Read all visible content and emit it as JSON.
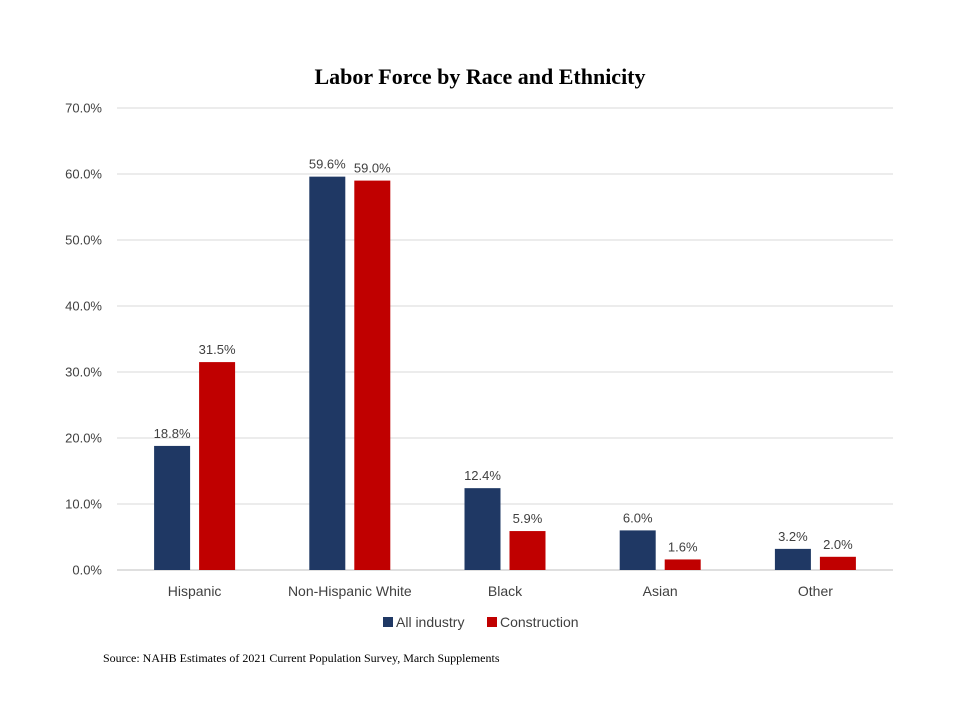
{
  "chart_data": {
    "type": "bar",
    "title": "Labor Force by Race and Ethnicity",
    "categories": [
      "Hispanic",
      "Non-Hispanic White",
      "Black",
      "Asian",
      "Other"
    ],
    "series": [
      {
        "name": "All industry",
        "color": "#1f3864",
        "values": [
          18.8,
          59.6,
          12.4,
          6.0,
          3.2
        ],
        "labels": [
          "18.8%",
          "59.6%",
          "12.4%",
          "6.0%",
          "3.2%"
        ]
      },
      {
        "name": "Construction",
        "color": "#c00000",
        "values": [
          31.5,
          59.0,
          5.9,
          1.6,
          2.0
        ],
        "labels": [
          "31.5%",
          "59.0%",
          "5.9%",
          "1.6%",
          "2.0%"
        ]
      }
    ],
    "ylim": [
      0,
      70
    ],
    "yticks": [
      0,
      10,
      20,
      30,
      40,
      50,
      60,
      70
    ],
    "ytick_labels": [
      "0.0%",
      "10.0%",
      "20.0%",
      "30.0%",
      "40.0%",
      "50.0%",
      "60.0%",
      "70.0%"
    ],
    "xlabel": "",
    "ylabel": "",
    "grid": true,
    "legend_position": "bottom"
  },
  "source_note": "Source: NAHB Estimates of 2021 Current Population Survey, March Supplements"
}
